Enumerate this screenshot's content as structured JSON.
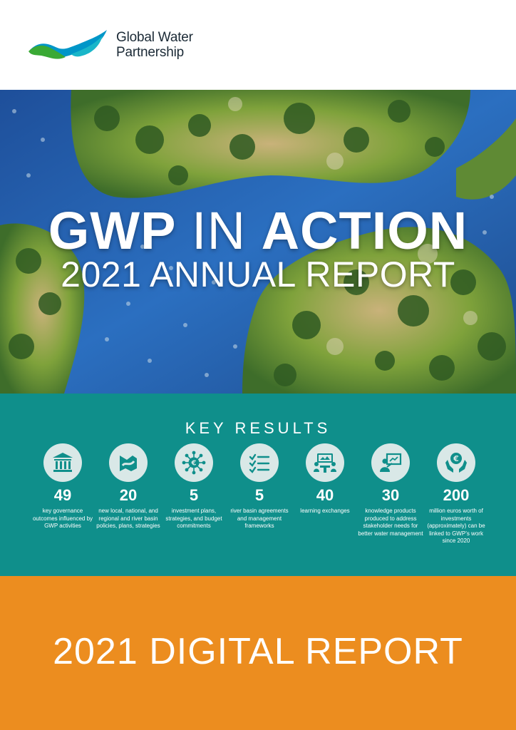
{
  "header": {
    "org_name_line1": "Global Water",
    "org_name_line2": "Partnership"
  },
  "hero": {
    "title_part1": "GWP",
    "title_part2": " IN ",
    "title_part3": "ACTION",
    "subtitle": "2021 ANNUAL REPORT"
  },
  "key_results": {
    "title": "KEY RESULTS",
    "items": [
      {
        "icon": "government-building-icon",
        "value": "49",
        "description": "key governance outcomes influenced by GWP activities"
      },
      {
        "icon": "river-landscape-icon",
        "value": "20",
        "description": "new local, national, and regional and river basin policies, plans, strategies"
      },
      {
        "icon": "euro-network-icon",
        "value": "5",
        "description": "investment plans, strategies, and budget commitments"
      },
      {
        "icon": "checklist-icon",
        "value": "5",
        "description": "river basin agreements and management frameworks"
      },
      {
        "icon": "people-meeting-icon",
        "value": "40",
        "description": "learning exchanges"
      },
      {
        "icon": "presentation-icon",
        "value": "30",
        "description": "knowledge products produced to address stakeholder needs for better water management"
      },
      {
        "icon": "euro-hands-icon",
        "value": "200",
        "description": "million euros worth of investments (approximately) can be linked to GWP’s work since 2020"
      }
    ]
  },
  "footer": {
    "title": "2021 DIGITAL REPORT"
  },
  "colors": {
    "teal_band": "#0f8f8b",
    "orange_band": "#ec8d1f",
    "logo_green": "#3aa935",
    "logo_blue": "#0096c8"
  }
}
